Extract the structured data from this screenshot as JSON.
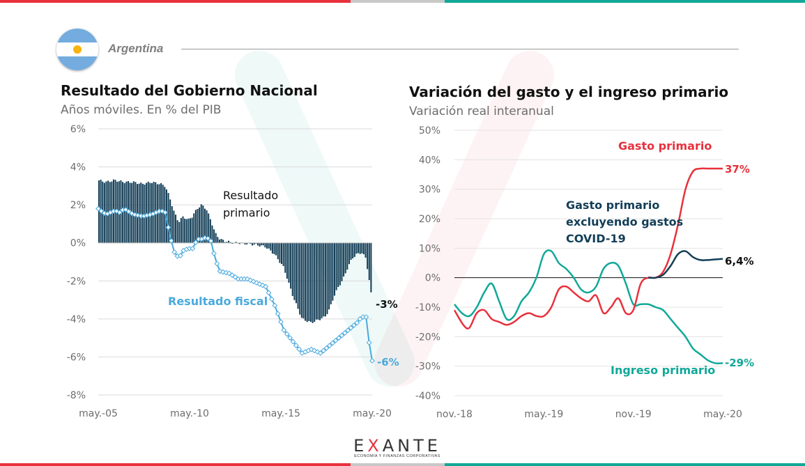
{
  "header": {
    "country": "Argentina"
  },
  "colors": {
    "red": "#e8313c",
    "gray": "#c8c8c8",
    "teal": "#11a898",
    "navy": "#133e57",
    "lightblue": "#4aa9dd"
  },
  "logo": {
    "name_pre": "E",
    "name_x": "X",
    "name_post": "ANTE",
    "tagline": "ECONOMÍA Y FINANZAS CORPORATIVAS"
  },
  "chart_data": [
    {
      "type": "bar",
      "title": "Resultado del Gobierno Nacional",
      "subtitle": "Años móviles. En % del PIB",
      "y_ticks": [
        "6%",
        "4%",
        "2%",
        "0%",
        "-2%",
        "-4%",
        "-6%",
        "-8%"
      ],
      "x_ticks": [
        "may.-05",
        "may.-10",
        "may.-15",
        "may.-20"
      ],
      "ylim": [
        -8,
        6
      ],
      "xlim": [
        2005.33,
        2020.33
      ],
      "series": [
        {
          "name": "Resultado primario",
          "label": "Resultado primario",
          "end_label": "-3%",
          "x": [
            2005.33,
            2005.75,
            2006.25,
            2006.75,
            2007.25,
            2007.75,
            2008.25,
            2008.75,
            2009.0,
            2009.25,
            2009.5,
            2009.75,
            2010.0,
            2010.25,
            2010.5,
            2010.75,
            2011.0,
            2011.25,
            2011.5,
            2011.75,
            2012.0,
            2012.25,
            2012.5,
            2012.75,
            2013.0,
            2013.5,
            2014.0,
            2014.5,
            2015.0,
            2015.5,
            2016.0,
            2016.5,
            2017.0,
            2017.25,
            2017.5,
            2017.75,
            2018.0,
            2018.25,
            2018.5,
            2018.75,
            2019.0,
            2019.25,
            2019.5,
            2019.75,
            2020.0,
            2020.17,
            2020.33
          ],
          "values": [
            3.3,
            3.2,
            3.3,
            3.2,
            3.2,
            3.1,
            3.2,
            3.1,
            3.0,
            2.4,
            1.6,
            1.1,
            1.4,
            1.2,
            1.4,
            1.8,
            2.0,
            1.8,
            1.2,
            0.5,
            0.2,
            0.1,
            0.05,
            0.0,
            0.0,
            -0.05,
            -0.1,
            -0.2,
            -0.6,
            -1.3,
            -2.8,
            -4.0,
            -4.2,
            -4.1,
            -4.0,
            -3.9,
            -3.5,
            -2.8,
            -2.3,
            -1.9,
            -1.3,
            -0.8,
            -0.6,
            -0.5,
            -0.8,
            -1.9,
            -3.0
          ]
        },
        {
          "name": "Resultado fiscal",
          "label": "Resultado fiscal",
          "end_label": "-6%",
          "x": [
            2005.33,
            2005.75,
            2006.25,
            2006.5,
            2006.75,
            2007.25,
            2007.75,
            2008.25,
            2008.75,
            2009.0,
            2009.25,
            2009.5,
            2009.75,
            2010.0,
            2010.25,
            2010.5,
            2010.75,
            2011.0,
            2011.25,
            2011.5,
            2011.75,
            2012.0,
            2012.5,
            2013.0,
            2013.5,
            2014.0,
            2014.5,
            2015.0,
            2015.5,
            2016.0,
            2016.5,
            2017.0,
            2017.5,
            2018.0,
            2018.5,
            2019.0,
            2019.5,
            2019.75,
            2020.0,
            2020.17,
            2020.33
          ],
          "values": [
            1.8,
            1.5,
            1.7,
            1.6,
            1.8,
            1.5,
            1.4,
            1.5,
            1.7,
            1.6,
            0.4,
            -0.5,
            -0.8,
            -0.4,
            -0.3,
            -0.3,
            0.2,
            0.2,
            0.3,
            0.1,
            -0.9,
            -1.5,
            -1.6,
            -1.9,
            -1.9,
            -2.1,
            -2.3,
            -3.3,
            -4.6,
            -5.2,
            -5.8,
            -5.6,
            -5.8,
            -5.4,
            -5.0,
            -4.6,
            -4.2,
            -3.9,
            -3.9,
            -5.3,
            -6.2
          ]
        }
      ]
    },
    {
      "type": "line",
      "title": "Variación del gasto y el ingreso primario",
      "subtitle": "Variación real interanual",
      "y_ticks": [
        "50%",
        "40%",
        "30%",
        "20%",
        "10%",
        "0%",
        "-10%",
        "-20%",
        "-30%",
        "-40%"
      ],
      "x_ticks": [
        "nov.-18",
        "may.-19",
        "nov.-19",
        "may.-20"
      ],
      "ylim": [
        -40,
        50
      ],
      "xlim": [
        0,
        18
      ],
      "x_unit": "months since nov.-18",
      "series": [
        {
          "name": "Gasto primario",
          "label": "Gasto primario",
          "end_label": "37%",
          "x": [
            0,
            0.6,
            1.0,
            1.5,
            2.0,
            2.5,
            3.0,
            3.5,
            4.0,
            4.5,
            5.0,
            5.5,
            6.0,
            6.5,
            7.0,
            7.5,
            8.0,
            8.5,
            9.0,
            9.5,
            10.0,
            10.5,
            11.0,
            11.5,
            12.0,
            12.5,
            13.0,
            13.5,
            14.0,
            14.5,
            15.0,
            15.5,
            16.0,
            16.5,
            17.0,
            17.5,
            18.0
          ],
          "values": [
            -11,
            -16,
            -17,
            -12,
            -11,
            -14,
            -15,
            -16,
            -15,
            -13,
            -12,
            -13,
            -13,
            -10,
            -4,
            -3,
            -5,
            -7,
            -8,
            -6,
            -12,
            -10,
            -7,
            -12,
            -11,
            -2,
            0,
            0,
            2,
            8,
            18,
            30,
            36,
            37,
            37,
            37,
            37
          ]
        },
        {
          "name": "Gasto primario excluyendo gastos COVID-19",
          "label_lines": [
            "Gasto primario",
            "excluyendo gastos",
            "COVID-19"
          ],
          "end_label": "6,4%",
          "x": [
            13.0,
            13.5,
            14.0,
            14.5,
            15.0,
            15.5,
            16.0,
            16.5,
            17.0,
            17.5,
            18.0
          ],
          "values": [
            0,
            0,
            1,
            4,
            8,
            9,
            7,
            6,
            6,
            6.2,
            6.4
          ]
        },
        {
          "name": "Ingreso primario",
          "label": "Ingreso primario",
          "end_label": "-29%",
          "x": [
            0,
            0.5,
            1.0,
            1.5,
            2.0,
            2.5,
            3.0,
            3.5,
            4.0,
            4.5,
            5.0,
            5.5,
            6.0,
            6.5,
            7.0,
            7.5,
            8.0,
            8.5,
            9.0,
            9.5,
            10.0,
            10.5,
            11.0,
            11.5,
            12.0,
            12.5,
            13.0,
            13.5,
            14.0,
            14.5,
            15.0,
            15.5,
            16.0,
            16.5,
            17.0,
            17.5,
            18.0
          ],
          "values": [
            -9,
            -12,
            -13,
            -10,
            -5,
            -2,
            -8,
            -14,
            -13,
            -8,
            -5,
            0,
            8,
            9,
            5,
            3,
            0,
            -4,
            -5,
            -3,
            3,
            5,
            4,
            -2,
            -9,
            -9,
            -9,
            -10,
            -11,
            -14,
            -17,
            -20,
            -24,
            -26,
            -28,
            -29,
            -29
          ]
        }
      ]
    }
  ]
}
